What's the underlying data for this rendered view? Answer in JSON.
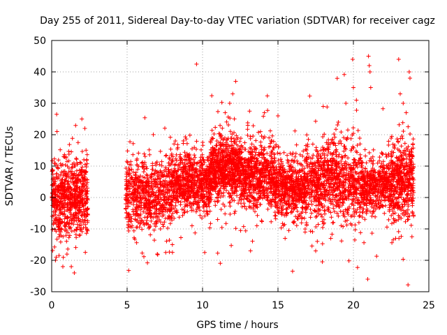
{
  "chart_data": {
    "type": "scatter",
    "title": "Day 255 of 2011, Sidereal Day-to-day VTEC variation (SDTVAR) for receiver cagz",
    "xlabel": "GPS time / hours",
    "ylabel": "SDTVAR / TECUs",
    "xlim": [
      0,
      25
    ],
    "ylim": [
      -30,
      50
    ],
    "xticks": [
      0,
      5,
      10,
      15,
      20,
      25
    ],
    "yticks": [
      -30,
      -20,
      -10,
      0,
      10,
      20,
      30,
      40,
      50
    ],
    "xtick_labels": [
      "0",
      "5",
      "10",
      "15",
      "20",
      "25"
    ],
    "ytick_labels": [
      "-30",
      "-20",
      "-10",
      "0",
      "10",
      "20",
      "30",
      "40",
      "50"
    ],
    "grid": true,
    "marker": "+",
    "color": "#ff0000",
    "series": [
      {
        "name": "cagz",
        "note": "dense point cloud; envelope segments describe data distribution",
        "segments": [
          {
            "x": [
              0.0,
              2.4
            ],
            "center": 0,
            "spread": 6,
            "n": 700
          },
          {
            "x": [
              4.9,
              8.0
            ],
            "center": 1,
            "spread": 5.5,
            "n": 700
          },
          {
            "x": [
              8.0,
              10.5
            ],
            "center": 5,
            "spread": 4.5,
            "n": 700
          },
          {
            "x": [
              10.5,
              12.5
            ],
            "center": 9,
            "spread": 5,
            "n": 700
          },
          {
            "x": [
              12.5,
              14.8
            ],
            "center": 7,
            "spread": 5,
            "n": 650
          },
          {
            "x": [
              14.8,
              16.8
            ],
            "center": 3,
            "spread": 4.5,
            "n": 550
          },
          {
            "x": [
              16.8,
              20.5
            ],
            "center": 5,
            "spread": 6,
            "n": 900
          },
          {
            "x": [
              20.5,
              22.3
            ],
            "center": 4,
            "spread": 4,
            "n": 450
          },
          {
            "x": [
              22.3,
              24.0
            ],
            "center": 5,
            "spread": 6,
            "n": 500
          }
        ],
        "outliers": [
          [
            0.3,
            -19
          ],
          [
            0.25,
            -20
          ],
          [
            0.35,
            21
          ],
          [
            1.3,
            -22
          ],
          [
            1.5,
            -24
          ],
          [
            2.0,
            25
          ],
          [
            2.2,
            22
          ],
          [
            7.0,
            -18
          ],
          [
            8.2,
            18
          ],
          [
            11.5,
            27
          ],
          [
            11.8,
            30
          ],
          [
            12.2,
            37
          ],
          [
            12.0,
            33
          ],
          [
            14.1,
            27
          ],
          [
            15.0,
            26
          ],
          [
            17.5,
            -17
          ],
          [
            18.0,
            29
          ],
          [
            19.0,
            24
          ],
          [
            19.5,
            30
          ],
          [
            20.0,
            35
          ],
          [
            20.2,
            31
          ],
          [
            19.95,
            44
          ],
          [
            21.0,
            45
          ],
          [
            21.05,
            42
          ],
          [
            21.1,
            40
          ],
          [
            21.15,
            35
          ],
          [
            20.95,
            -26
          ],
          [
            23.0,
            44
          ],
          [
            23.7,
            40
          ],
          [
            23.75,
            38
          ],
          [
            23.1,
            33
          ],
          [
            22.8,
            -13
          ],
          [
            23.3,
            30
          ],
          [
            23.5,
            27
          ],
          [
            18.5,
            -13
          ],
          [
            16.8,
            -11
          ],
          [
            9.3,
            -9
          ],
          [
            11.0,
            -7
          ],
          [
            13.6,
            -9
          ],
          [
            13.0,
            23
          ],
          [
            8.0,
            -15
          ]
        ]
      }
    ]
  }
}
